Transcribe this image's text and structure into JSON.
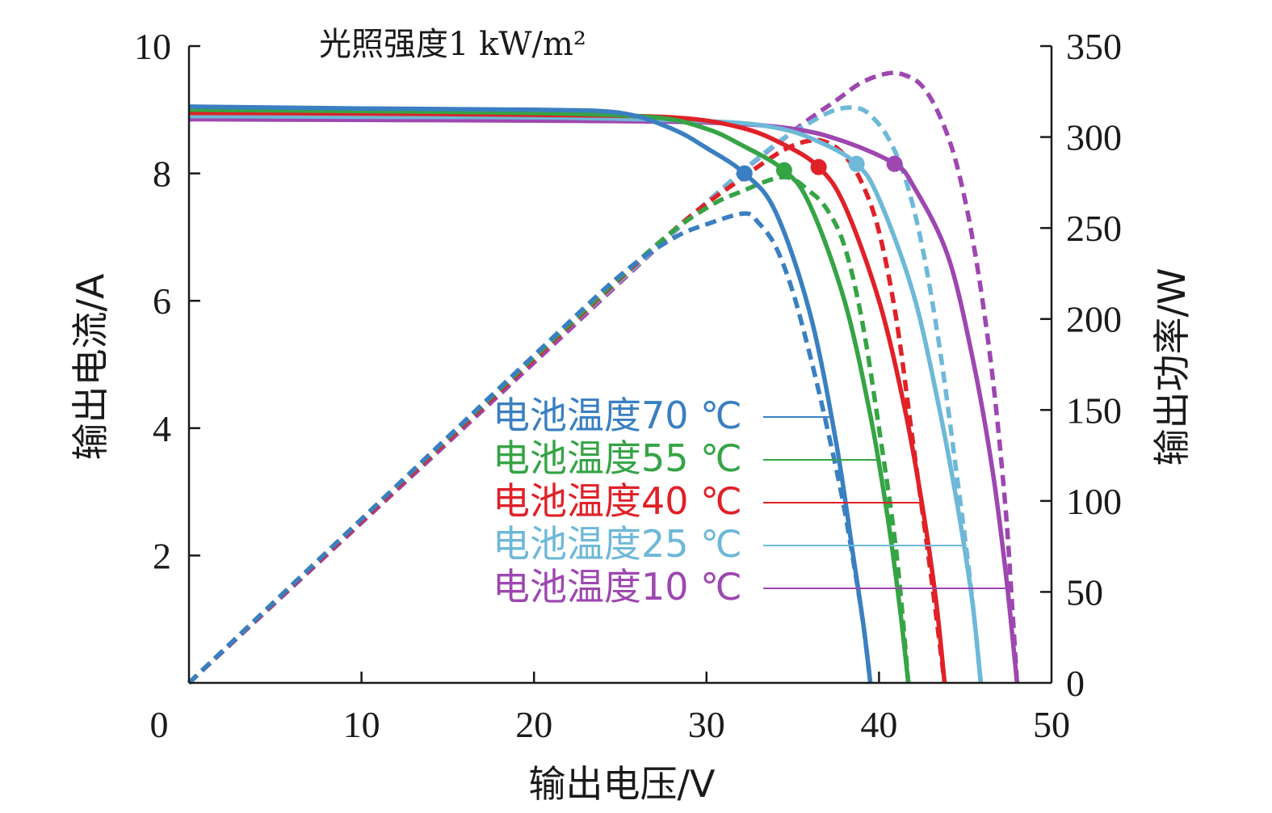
{
  "chart_data": {
    "type": "line",
    "annotation": "光照强度1 kW/m²",
    "xlabel": "输出电压/V",
    "ylabel_left": "输出电流/A",
    "ylabel_right": "输出功率/W",
    "xlim": [
      0,
      50
    ],
    "ylim_left": [
      0,
      10
    ],
    "ylim_right": [
      0,
      350
    ],
    "x_ticks": [
      0,
      10,
      20,
      30,
      40,
      50
    ],
    "y_left_ticks": [
      2,
      4,
      6,
      8,
      10
    ],
    "y_right_ticks": [
      0,
      50,
      100,
      150,
      200,
      250,
      300,
      350
    ],
    "grid": false,
    "legend_placement": "center",
    "series": [
      {
        "name": "电池温度70 ℃",
        "color": "#3a7fc1",
        "iv_points": [
          [
            0,
            9.05
          ],
          [
            10,
            9.02
          ],
          [
            20,
            9.0
          ],
          [
            25,
            8.95
          ],
          [
            28,
            8.7
          ],
          [
            30,
            8.4
          ],
          [
            32.2,
            8.0
          ],
          [
            34,
            7.4
          ],
          [
            36,
            5.8
          ],
          [
            37.5,
            3.8
          ],
          [
            38.5,
            2.0
          ],
          [
            39.1,
            0.9
          ],
          [
            39.5,
            0.0
          ]
        ],
        "power_points": [
          [
            0,
            0
          ],
          [
            10,
            90
          ],
          [
            20,
            180
          ],
          [
            25,
            224
          ],
          [
            28,
            244
          ],
          [
            30,
            252
          ],
          [
            32.2,
            258
          ],
          [
            33,
            253
          ],
          [
            34,
            240
          ],
          [
            35,
            215
          ],
          [
            36,
            180
          ],
          [
            37,
            140
          ],
          [
            38,
            95
          ],
          [
            39,
            38
          ],
          [
            39.5,
            0
          ]
        ],
        "mpp": [
          32.2,
          8.0
        ]
      },
      {
        "name": "电池温度55 ℃",
        "color": "#35a445",
        "iv_points": [
          [
            0,
            9.0
          ],
          [
            10,
            8.98
          ],
          [
            20,
            8.95
          ],
          [
            27,
            8.88
          ],
          [
            30,
            8.7
          ],
          [
            32,
            8.45
          ],
          [
            34.5,
            8.05
          ],
          [
            36,
            7.5
          ],
          [
            38,
            6.0
          ],
          [
            39.5,
            4.2
          ],
          [
            40.5,
            2.6
          ],
          [
            41.2,
            1.2
          ],
          [
            41.7,
            0.0
          ]
        ],
        "power_points": [
          [
            0,
            0
          ],
          [
            10,
            90
          ],
          [
            20,
            179
          ],
          [
            27,
            240
          ],
          [
            30,
            261
          ],
          [
            32,
            270
          ],
          [
            34.5,
            278
          ],
          [
            36,
            270
          ],
          [
            37,
            260
          ],
          [
            38,
            240
          ],
          [
            39,
            200
          ],
          [
            40,
            140
          ],
          [
            41,
            72
          ],
          [
            41.7,
            0
          ]
        ],
        "mpp": [
          34.5,
          8.05
        ]
      },
      {
        "name": "电池温度40 ℃",
        "color": "#e02127",
        "iv_points": [
          [
            0,
            8.95
          ],
          [
            10,
            8.94
          ],
          [
            20,
            8.92
          ],
          [
            28,
            8.88
          ],
          [
            32,
            8.72
          ],
          [
            34.5,
            8.45
          ],
          [
            36.5,
            8.1
          ],
          [
            38,
            7.5
          ],
          [
            40,
            6.0
          ],
          [
            41.5,
            4.3
          ],
          [
            42.5,
            2.8
          ],
          [
            43.3,
            1.3
          ],
          [
            43.8,
            0.0
          ]
        ],
        "power_points": [
          [
            0,
            0
          ],
          [
            10,
            89
          ],
          [
            20,
            178
          ],
          [
            28,
            248
          ],
          [
            32,
            277
          ],
          [
            34.5,
            293
          ],
          [
            36,
            298
          ],
          [
            37,
            297
          ],
          [
            38,
            290
          ],
          [
            39,
            275
          ],
          [
            40,
            248
          ],
          [
            41,
            200
          ],
          [
            42,
            130
          ],
          [
            43,
            60
          ],
          [
            43.8,
            0
          ]
        ],
        "mpp": [
          36.5,
          8.1
        ]
      },
      {
        "name": "电池温度25 ℃",
        "color": "#6eb8d8",
        "iv_points": [
          [
            0,
            8.9
          ],
          [
            10,
            8.89
          ],
          [
            20,
            8.88
          ],
          [
            30,
            8.82
          ],
          [
            34,
            8.72
          ],
          [
            36.5,
            8.5
          ],
          [
            38.7,
            8.15
          ],
          [
            40,
            7.6
          ],
          [
            42,
            6.1
          ],
          [
            43.5,
            4.3
          ],
          [
            44.6,
            2.7
          ],
          [
            45.4,
            1.3
          ],
          [
            45.9,
            0.0
          ]
        ],
        "power_points": [
          [
            0,
            0
          ],
          [
            10,
            89
          ],
          [
            20,
            178
          ],
          [
            30,
            264
          ],
          [
            34,
            296
          ],
          [
            36,
            308
          ],
          [
            37.5,
            315
          ],
          [
            38.7,
            316
          ],
          [
            39.5,
            312
          ],
          [
            40.5,
            300
          ],
          [
            41.5,
            278
          ],
          [
            42.5,
            240
          ],
          [
            43.5,
            185
          ],
          [
            44.5,
            115
          ],
          [
            45.3,
            55
          ],
          [
            45.9,
            0
          ]
        ],
        "mpp": [
          38.7,
          8.15
        ]
      },
      {
        "name": "电池温度10 ℃",
        "color": "#9d47b0",
        "iv_points": [
          [
            0,
            8.85
          ],
          [
            10,
            8.84
          ],
          [
            20,
            8.83
          ],
          [
            30,
            8.8
          ],
          [
            35,
            8.7
          ],
          [
            38,
            8.5
          ],
          [
            40.9,
            8.15
          ],
          [
            42,
            7.8
          ],
          [
            44,
            6.7
          ],
          [
            45.5,
            5.0
          ],
          [
            46.6,
            3.3
          ],
          [
            47.4,
            1.6
          ],
          [
            48.0,
            0.0
          ]
        ],
        "power_points": [
          [
            0,
            0
          ],
          [
            10,
            88
          ],
          [
            20,
            176
          ],
          [
            30,
            264
          ],
          [
            35,
            303
          ],
          [
            37.5,
            320
          ],
          [
            39,
            330
          ],
          [
            40.5,
            335
          ],
          [
            41.5,
            334
          ],
          [
            42.5,
            328
          ],
          [
            43.5,
            312
          ],
          [
            44.5,
            285
          ],
          [
            45.5,
            240
          ],
          [
            46.5,
            175
          ],
          [
            47.3,
            100
          ],
          [
            47.7,
            45
          ],
          [
            48.0,
            0
          ]
        ],
        "mpp": [
          40.9,
          8.15
        ]
      }
    ]
  }
}
